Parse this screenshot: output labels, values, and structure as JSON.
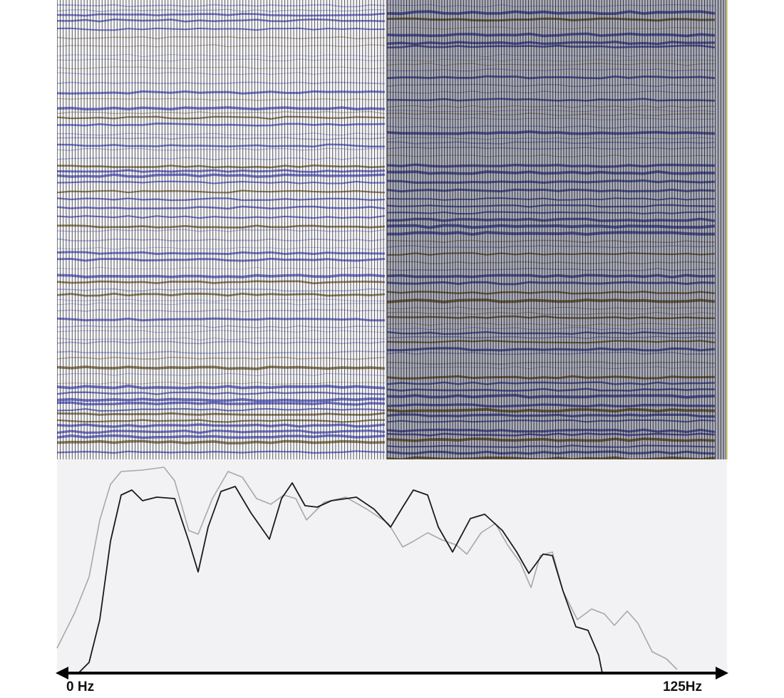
{
  "axis": {
    "start_label": "0 Hz",
    "end_label": "125Hz"
  }
}
